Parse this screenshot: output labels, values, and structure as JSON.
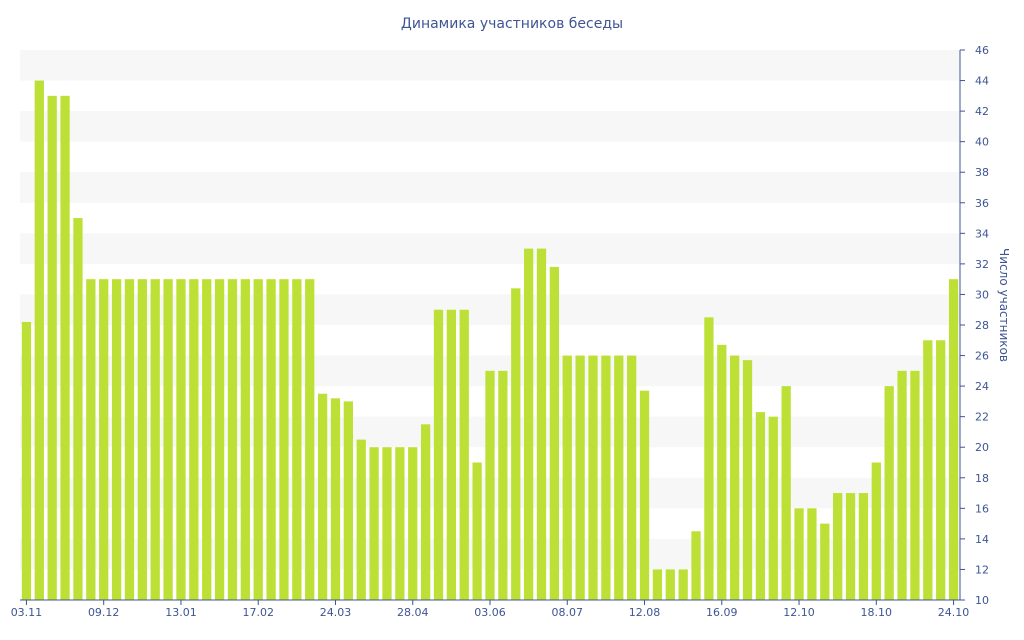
{
  "chart_data": {
    "type": "bar",
    "title": "Динамика участников беседы",
    "xlabel": "",
    "ylabel": "Число участников",
    "y_axis_side": "right",
    "ylim": [
      10,
      46
    ],
    "y_ticks": [
      10,
      12,
      14,
      16,
      18,
      20,
      22,
      24,
      26,
      28,
      30,
      32,
      34,
      36,
      38,
      40,
      42,
      44,
      46
    ],
    "grid": "alternating horizontal bands",
    "legend": "none",
    "bar_color": "#bde036",
    "x_tick_labels": [
      {
        "label": "03.11",
        "index": 0
      },
      {
        "label": "09.12",
        "index": 6
      },
      {
        "label": "13.01",
        "index": 12
      },
      {
        "label": "17.02",
        "index": 18
      },
      {
        "label": "24.03",
        "index": 24
      },
      {
        "label": "28.04",
        "index": 30
      },
      {
        "label": "03.06",
        "index": 36
      },
      {
        "label": "08.07",
        "index": 42
      },
      {
        "label": "12.08",
        "index": 48
      },
      {
        "label": "16.09",
        "index": 54
      },
      {
        "label": "12.10",
        "index": 60
      },
      {
        "label": "18.10",
        "index": 66
      },
      {
        "label": "24.10",
        "index": 72
      }
    ],
    "values": [
      28.2,
      44,
      43,
      43,
      35,
      31,
      31,
      31,
      31,
      31,
      31,
      31,
      31,
      31,
      31,
      31,
      31,
      31,
      31,
      31,
      31,
      31,
      31,
      23.5,
      23.2,
      23,
      20.5,
      20,
      20,
      20,
      20,
      21.5,
      29,
      29,
      29,
      19,
      25,
      25,
      30.4,
      33,
      33,
      31.8,
      26,
      26,
      26,
      26,
      26,
      26,
      23.7,
      12,
      12,
      12,
      14.5,
      28.5,
      26.7,
      26,
      25.7,
      22.3,
      22,
      24,
      16,
      16,
      15,
      17,
      17,
      17,
      19,
      24,
      25,
      25,
      27,
      27,
      31
    ]
  }
}
